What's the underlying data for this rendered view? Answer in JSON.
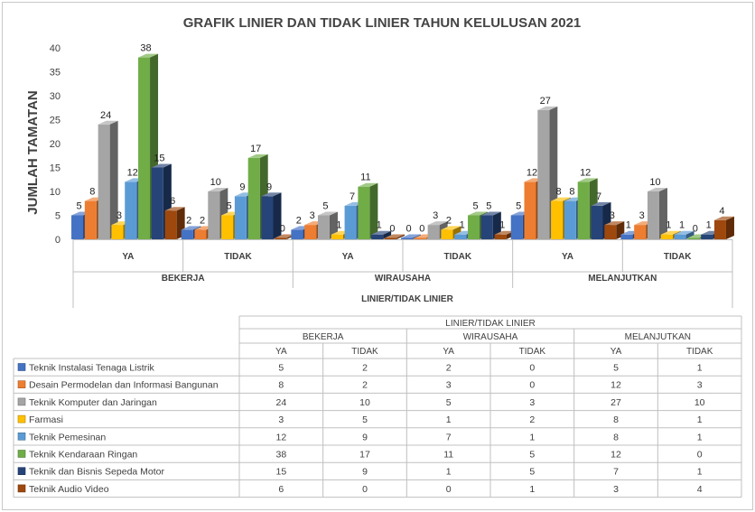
{
  "chart_data": {
    "type": "bar",
    "title": "GRAFIK LINIER DAN TIDAK LINIER TAHUN KELULUSAN 2021",
    "ylabel": "JUMLAH TAMATAN",
    "xlabel": "LINIER/TIDAK LINIER",
    "ylim": [
      0,
      40
    ],
    "yticks": [
      0,
      5,
      10,
      15,
      20,
      25,
      30,
      35,
      40
    ],
    "grid": false,
    "legend": "data-table-bottom",
    "group_level_labels": [
      "BEKERJA",
      "WIRAUSAHA",
      "MELANJUTKAN"
    ],
    "categories": [
      "YA",
      "TIDAK",
      "YA",
      "TIDAK",
      "YA",
      "TIDAK"
    ],
    "series": [
      {
        "name": "Teknik Instalasi Tenaga Listrik",
        "color": "#4472c4",
        "values": [
          5,
          2,
          2,
          0,
          5,
          1
        ]
      },
      {
        "name": "Desain Permodelan dan Informasi Bangunan",
        "color": "#ed7d31",
        "values": [
          8,
          2,
          3,
          0,
          12,
          3
        ]
      },
      {
        "name": "Teknik Komputer dan Jaringan",
        "color": "#a5a5a5",
        "values": [
          24,
          10,
          5,
          3,
          27,
          10
        ]
      },
      {
        "name": "Farmasi",
        "color": "#ffc000",
        "values": [
          3,
          5,
          1,
          2,
          8,
          1
        ]
      },
      {
        "name": "Teknik Pemesinan",
        "color": "#5b9bd5",
        "values": [
          12,
          9,
          7,
          1,
          8,
          1
        ]
      },
      {
        "name": "Teknik Kendaraan Ringan",
        "color": "#70ad47",
        "values": [
          38,
          17,
          11,
          5,
          12,
          0
        ]
      },
      {
        "name": "Teknik dan Bisnis Sepeda Motor",
        "color": "#264478",
        "values": [
          15,
          9,
          1,
          5,
          7,
          1
        ]
      },
      {
        "name": "Teknik Audio Video",
        "color": "#9e480e",
        "values": [
          6,
          0,
          0,
          1,
          3,
          4
        ]
      }
    ]
  }
}
